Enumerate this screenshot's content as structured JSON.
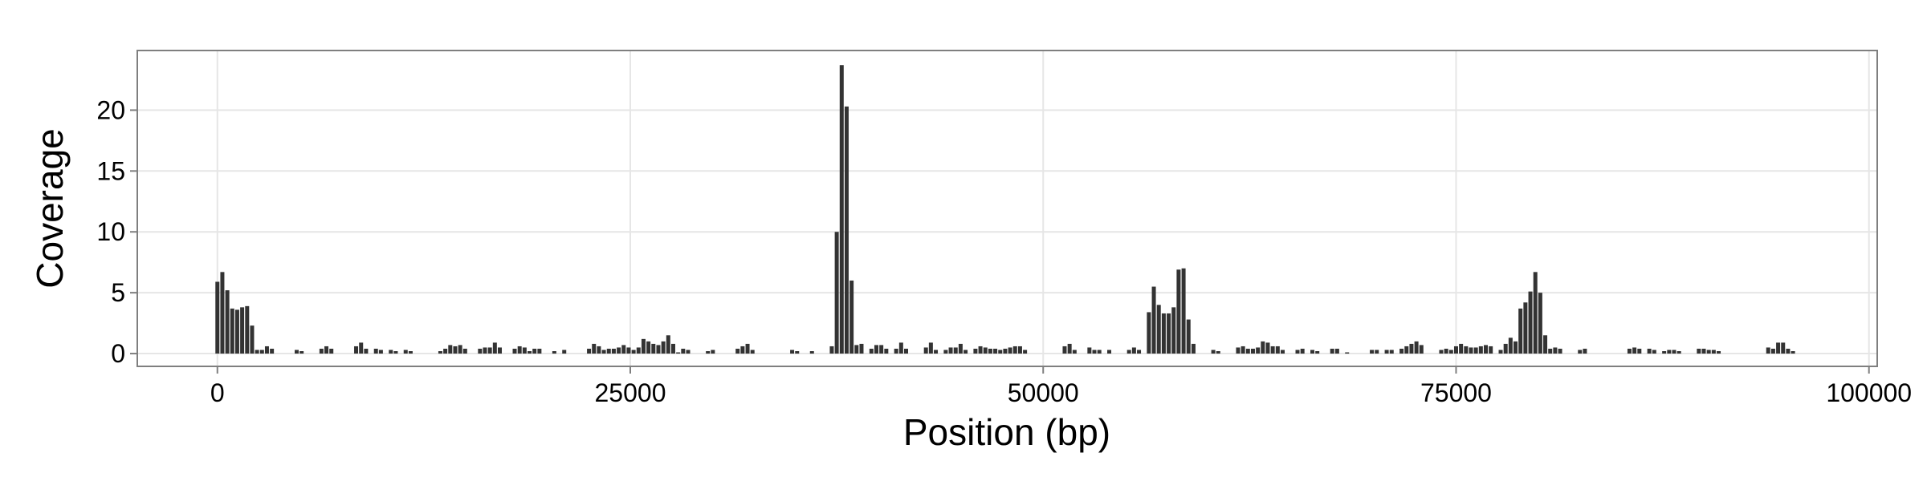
{
  "chart_data": {
    "type": "bar",
    "x_label": "Position (bp)",
    "y_label": "Coverage",
    "color": "#333333",
    "grid": true,
    "xlim": [
      -4850,
      100500
    ],
    "ylim": [
      -1.05,
      24.9
    ],
    "xticks": [
      0,
      25000,
      50000,
      75000,
      100000
    ],
    "yticks": [
      0,
      5,
      10,
      15,
      20
    ],
    "x": [
      0,
      300,
      600,
      900,
      1200,
      1500,
      1800,
      2100,
      2400,
      2700,
      3000,
      3300,
      4800,
      5100,
      6300,
      6600,
      6900,
      8400,
      8700,
      9000,
      9600,
      9900,
      10500,
      10800,
      11400,
      11700,
      13500,
      13800,
      14100,
      14400,
      14700,
      15000,
      15900,
      16200,
      16500,
      16800,
      17100,
      18000,
      18300,
      18600,
      18900,
      19200,
      19500,
      20400,
      21000,
      22500,
      22800,
      23100,
      23400,
      23700,
      24000,
      24300,
      24600,
      24900,
      25200,
      25500,
      25800,
      26100,
      26400,
      26700,
      27000,
      27300,
      27600,
      27900,
      28200,
      28500,
      29700,
      30000,
      31500,
      31800,
      32100,
      32400,
      34800,
      35100,
      36000,
      37200,
      37500,
      37800,
      38100,
      38400,
      38700,
      39000,
      39600,
      39900,
      40200,
      40500,
      41100,
      41400,
      41700,
      42900,
      43200,
      43500,
      44100,
      44400,
      44700,
      45000,
      45300,
      45900,
      46200,
      46500,
      46800,
      47100,
      47400,
      47700,
      48000,
      48300,
      48600,
      48900,
      51300,
      51600,
      51900,
      52800,
      53100,
      53400,
      54000,
      55200,
      55500,
      55800,
      56400,
      56700,
      57000,
      57300,
      57600,
      57900,
      58200,
      58500,
      58800,
      59100,
      60300,
      60600,
      61800,
      62100,
      62400,
      62700,
      63000,
      63300,
      63600,
      63900,
      64200,
      64500,
      65400,
      65700,
      66300,
      66600,
      67500,
      67800,
      68400,
      69900,
      70200,
      70800,
      71100,
      71700,
      72000,
      72300,
      72600,
      72900,
      74100,
      74400,
      74700,
      75000,
      75300,
      75600,
      75900,
      76200,
      76500,
      76800,
      77100,
      77700,
      78000,
      78300,
      78600,
      78900,
      79200,
      79500,
      79800,
      80100,
      80400,
      80700,
      81000,
      81300,
      82500,
      82800,
      85500,
      85800,
      86100,
      86700,
      87000,
      87600,
      87900,
      88200,
      88500,
      89700,
      90000,
      90300,
      90600,
      90900,
      93900,
      94200,
      94500,
      94800,
      95100,
      95400
    ],
    "values": [
      5.9,
      6.7,
      5.2,
      3.7,
      3.6,
      3.8,
      3.9,
      2.3,
      0.3,
      0.3,
      0.6,
      0.4,
      0.3,
      0.2,
      0.4,
      0.6,
      0.4,
      0.6,
      0.9,
      0.4,
      0.4,
      0.3,
      0.3,
      0.2,
      0.3,
      0.2,
      0.2,
      0.4,
      0.7,
      0.6,
      0.7,
      0.4,
      0.4,
      0.5,
      0.5,
      0.9,
      0.5,
      0.4,
      0.6,
      0.5,
      0.2,
      0.4,
      0.4,
      0.2,
      0.3,
      0.4,
      0.8,
      0.6,
      0.3,
      0.4,
      0.4,
      0.5,
      0.7,
      0.5,
      0.3,
      0.5,
      1.2,
      1.0,
      0.8,
      0.7,
      1.0,
      1.5,
      0.8,
      0.1,
      0.4,
      0.3,
      0.2,
      0.3,
      0.4,
      0.6,
      0.8,
      0.3,
      0.3,
      0.2,
      0.2,
      0.6,
      10,
      23.7,
      20.3,
      6,
      0.7,
      0.8,
      0.4,
      0.7,
      0.7,
      0.4,
      0.4,
      0.9,
      0.4,
      0.5,
      0.9,
      0.3,
      0.3,
      0.5,
      0.5,
      0.8,
      0.3,
      0.4,
      0.6,
      0.5,
      0.4,
      0.4,
      0.3,
      0.4,
      0.5,
      0.6,
      0.6,
      0.3,
      0.6,
      0.8,
      0.3,
      0.5,
      0.3,
      0.3,
      0.3,
      0.3,
      0.5,
      0.3,
      3.4,
      5.5,
      4,
      3.3,
      3.3,
      3.8,
      6.9,
      7,
      2.8,
      0.8,
      0.3,
      0.2,
      0.5,
      0.6,
      0.4,
      0.4,
      0.5,
      1.0,
      0.9,
      0.6,
      0.6,
      0.3,
      0.3,
      0.4,
      0.3,
      0.2,
      0.4,
      0.4,
      0.1,
      0.3,
      0.3,
      0.3,
      0.3,
      0.4,
      0.6,
      0.8,
      1.0,
      0.7,
      0.3,
      0.4,
      0.3,
      0.6,
      0.8,
      0.6,
      0.5,
      0.5,
      0.6,
      0.7,
      0.6,
      0.3,
      0.8,
      1.3,
      1.0,
      3.7,
      4.2,
      5.1,
      6.7,
      5,
      1.5,
      0.4,
      0.5,
      0.4,
      0.3,
      0.4,
      0.4,
      0.5,
      0.4,
      0.4,
      0.3,
      0.2,
      0.3,
      0.3,
      0.2,
      0.4,
      0.4,
      0.3,
      0.3,
      0.2,
      0.5,
      0.4,
      0.9,
      0.9,
      0.4,
      0.2
    ]
  }
}
